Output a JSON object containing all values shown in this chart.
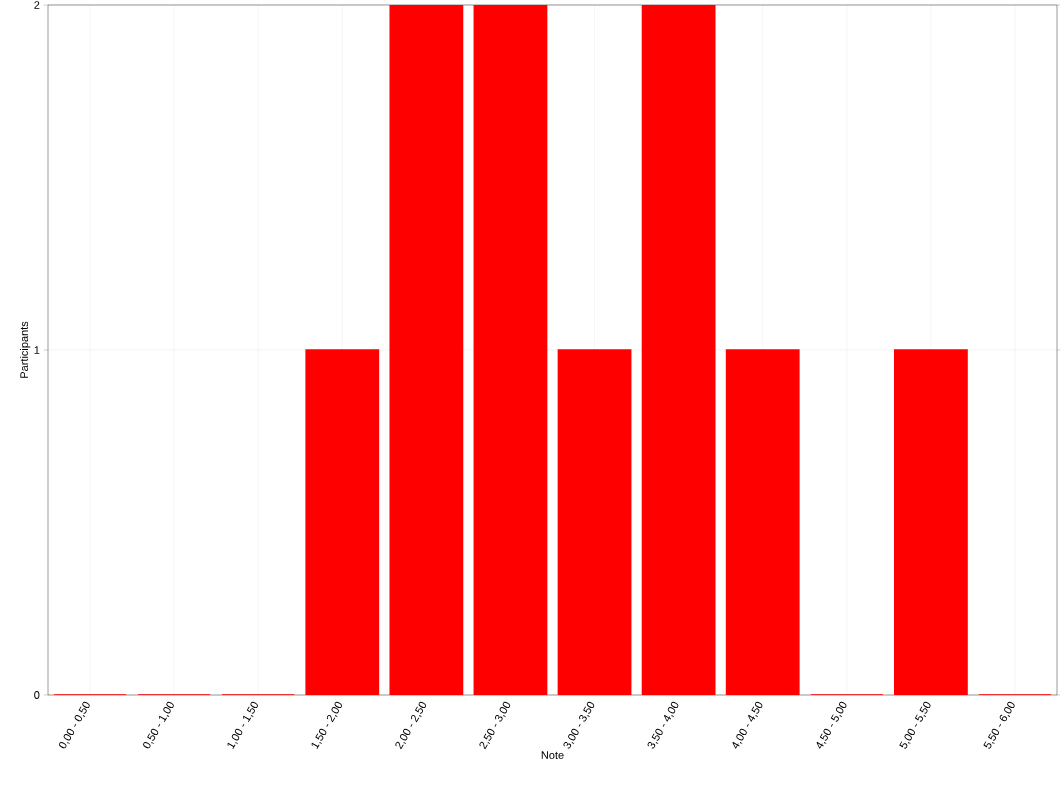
{
  "chart_data": {
    "type": "bar",
    "xlabel": "Note",
    "ylabel": "Participants",
    "categories": [
      "0,00 - 0,50",
      "0,50 - 1,00",
      "1,00 - 1,50",
      "1,50 - 2,00",
      "2,00 - 2,50",
      "2,50 - 3,00",
      "3,00 - 3,50",
      "3,50 - 4,00",
      "4,00 - 4,50",
      "4,50 - 5,00",
      "5,00 - 5,50",
      "5,50 - 6,00"
    ],
    "values": [
      0,
      0,
      0,
      1,
      2,
      2,
      1,
      2,
      1,
      0,
      1,
      0
    ],
    "color": "#ff0000",
    "ylim": [
      0,
      2
    ],
    "yticks": [
      0,
      1,
      2
    ],
    "grid": true
  }
}
